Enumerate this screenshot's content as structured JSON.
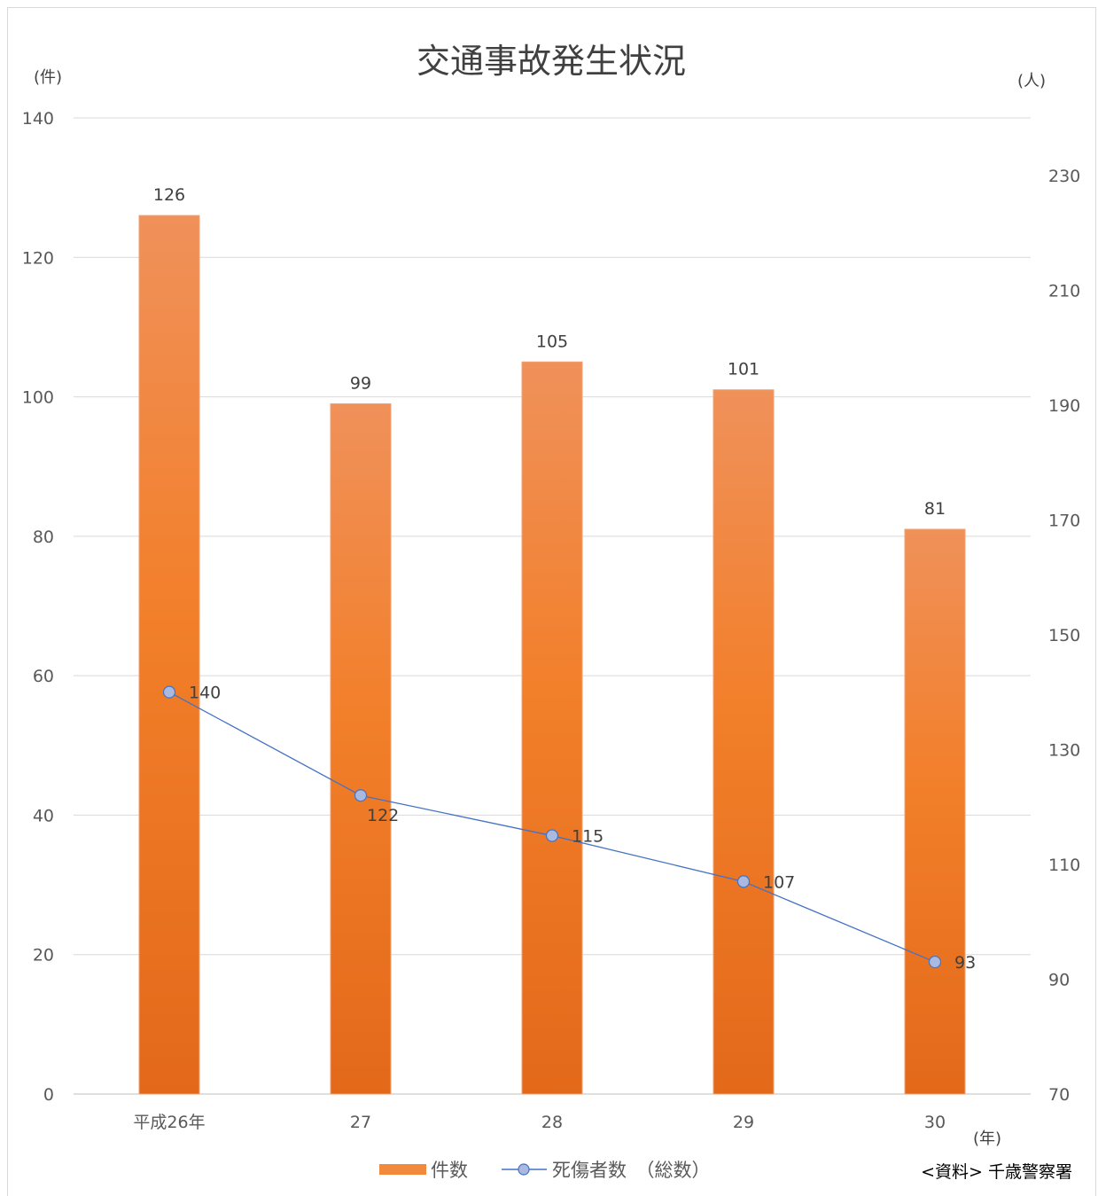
{
  "chart_data": {
    "type": "bar",
    "title": "交通事故発生状況",
    "categories": [
      "平成26年",
      "27",
      "28",
      "29",
      "30"
    ],
    "x_unit": "(年)",
    "y_left": {
      "unit": "(件)",
      "ylim": [
        0,
        140
      ],
      "ticks": [
        0,
        20,
        40,
        60,
        80,
        100,
        120,
        140
      ]
    },
    "y_right": {
      "unit": "(人)",
      "ylim": [
        70,
        240
      ],
      "ticks": [
        70,
        90,
        110,
        130,
        150,
        170,
        190,
        210,
        230
      ]
    },
    "series": [
      {
        "name": "件数",
        "type": "bar",
        "axis": "left",
        "color": "#f28a3e",
        "values": [
          126,
          99,
          105,
          101,
          81
        ]
      },
      {
        "name": "死傷者数　（総数）",
        "type": "line",
        "axis": "right",
        "color": "#4472c4",
        "marker_color": "#a9b9e0",
        "values": [
          140,
          122,
          115,
          107,
          93
        ]
      }
    ],
    "grid": true,
    "legend": "bottom",
    "source": "<資料> 千歳警察署"
  }
}
